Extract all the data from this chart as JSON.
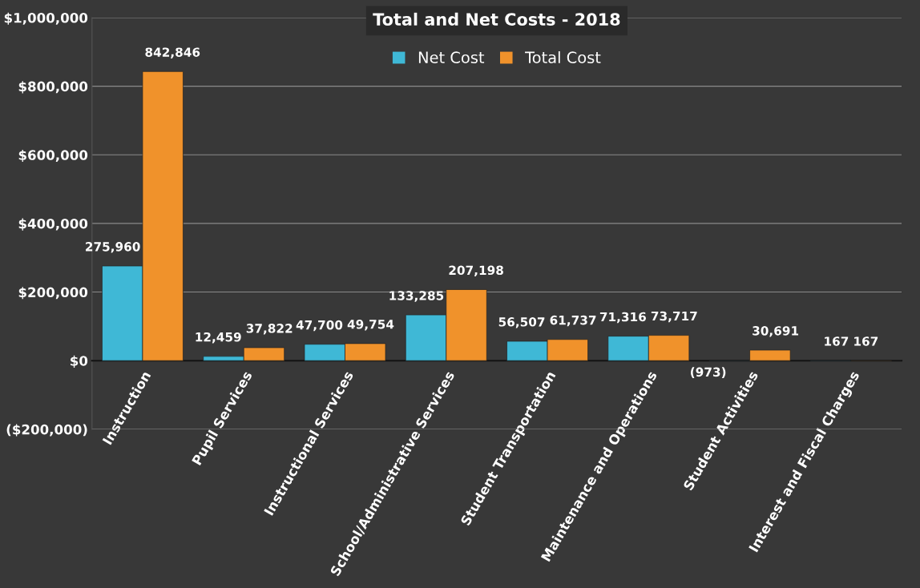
{
  "chart_data": {
    "type": "bar",
    "title": "Total and Net Costs - 2018",
    "categories": [
      "Instruction",
      "Pupil Services",
      "Instructional Services",
      "School/Administrative Services",
      "Student Transportation",
      "Maintenance and Operations",
      "Student Activities",
      "Interest and Fiscal Charges"
    ],
    "series": [
      {
        "name": "Net Cost",
        "color": "#3fb8d6",
        "values": [
          275960,
          12459,
          47700,
          133285,
          56507,
          71316,
          -973,
          167
        ],
        "value_labels": [
          "275,960",
          "12,459",
          "47,700",
          "133,285",
          "56,507",
          "71,316",
          "(973)",
          "167"
        ]
      },
      {
        "name": "Total Cost",
        "color": "#f0922b",
        "values": [
          842846,
          37822,
          49754,
          207198,
          61737,
          73717,
          30691,
          167
        ],
        "value_labels": [
          "842,846",
          "37,822",
          "49,754",
          "207,198",
          "61,737",
          "73,717",
          "30,691",
          "167"
        ]
      }
    ],
    "ylim": [
      -200000,
      1000000
    ],
    "yticks": [
      {
        "value": -200000,
        "label": "($200,000)"
      },
      {
        "value": 0,
        "label": "$0"
      },
      {
        "value": 200000,
        "label": "$200,000"
      },
      {
        "value": 400000,
        "label": "$400,000"
      },
      {
        "value": 600000,
        "label": "$600,000"
      },
      {
        "value": 800000,
        "label": "$800,000"
      },
      {
        "value": 1000000,
        "label": "$1,000,000"
      }
    ],
    "grid": "y",
    "legend": "top"
  }
}
